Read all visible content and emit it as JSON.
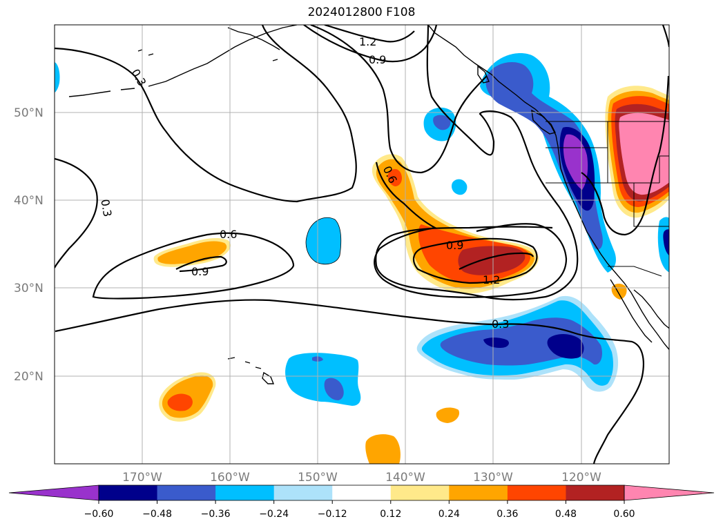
{
  "title": "2024012800 F108",
  "map": {
    "lat_labels": [
      "50°N",
      "40°N",
      "30°N",
      "20°N"
    ],
    "lon_labels": [
      "170°W",
      "160°W",
      "150°W",
      "140°W",
      "130°W",
      "120°W"
    ],
    "lat_range": [
      10,
      60
    ],
    "lon_range": [
      -180,
      -110
    ],
    "grid": true,
    "contour_labels": [
      "1.2",
      "0.9",
      "0.3",
      "0.3",
      "0.6",
      "0.9",
      "0.6",
      "0.9",
      "1.2",
      "0.3"
    ]
  },
  "colorbar": {
    "ticks": [
      "−0.60",
      "−0.48",
      "−0.36",
      "−0.24",
      "−0.12",
      "0.12",
      "0.24",
      "0.36",
      "0.48",
      "0.60"
    ],
    "colors": [
      "#9932CC",
      "#00008B",
      "#3A5BCC",
      "#00BFFF",
      "#ADE2FA",
      "#FFFFFF",
      "#FFE98A",
      "#FFA500",
      "#FF4500",
      "#B22222",
      "#FF85B0"
    ],
    "extend": "both"
  }
}
